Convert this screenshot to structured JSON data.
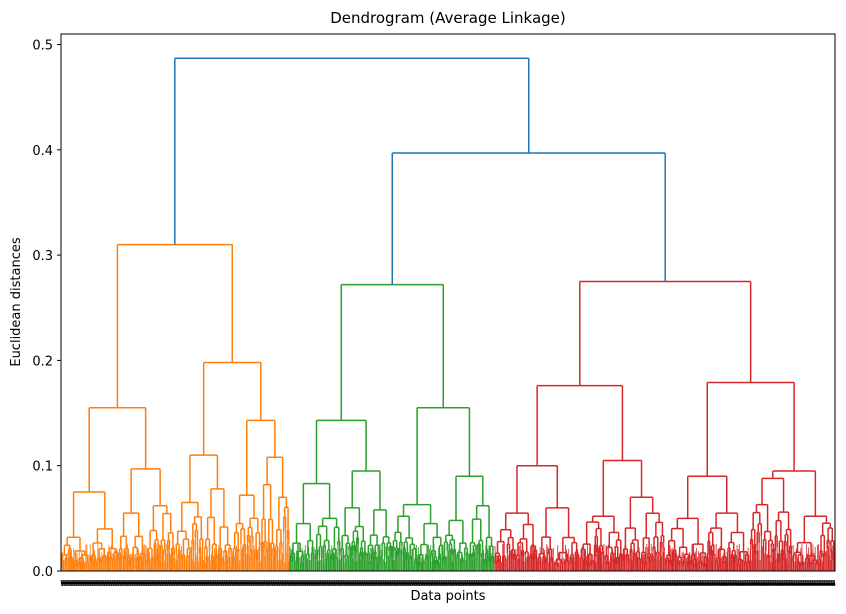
{
  "chart_data": {
    "type": "dendrogram",
    "title": "Dendrogram (Average Linkage)",
    "xlabel": "Data points",
    "ylabel": "Euclidean distances",
    "ylim": [
      0,
      0.51
    ],
    "yticks": [
      "0.0",
      "0.1",
      "0.2",
      "0.3",
      "0.4",
      "0.5"
    ],
    "link_colors": {
      "above_threshold": "#1f77b4",
      "cluster_1": "#ff7f0e",
      "cluster_2": "#2ca02c",
      "cluster_3": "#d62728"
    },
    "clusters": [
      {
        "name": "cluster_1",
        "color": "#ff7f0e",
        "extent": [
          0.0,
          0.295
        ],
        "tree": {
          "h": 0.31,
          "c": [
            {
              "h": 0.155,
              "c": [
                {
                  "h": 0.075,
                  "c": [
                    {
                      "h": 0.032
                    },
                    {
                      "h": 0.04
                    }
                  ]
                },
                {
                  "h": 0.097,
                  "c": [
                    {
                      "h": 0.055
                    },
                    {
                      "h": 0.062
                    }
                  ]
                }
              ]
            },
            {
              "h": 0.198,
              "c": [
                {
                  "h": 0.11,
                  "c": [
                    {
                      "h": 0.065
                    },
                    {
                      "h": 0.078
                    }
                  ]
                },
                {
                  "h": 0.143,
                  "c": [
                    {
                      "h": 0.072,
                      "c": [
                        {
                          "h": 0.045
                        },
                        {
                          "h": 0.05
                        }
                      ]
                    },
                    {
                      "h": 0.108,
                      "c": [
                        {
                          "h": 0.082
                        },
                        {
                          "h": 0.07
                        }
                      ]
                    }
                  ]
                }
              ]
            }
          ]
        }
      },
      {
        "name": "cluster_2",
        "color": "#2ca02c",
        "extent": [
          0.295,
          0.56
        ],
        "tree": {
          "h": 0.272,
          "c": [
            {
              "h": 0.143,
              "c": [
                {
                  "h": 0.083,
                  "c": [
                    {
                      "h": 0.045
                    },
                    {
                      "h": 0.05
                    }
                  ]
                },
                {
                  "h": 0.095,
                  "c": [
                    {
                      "h": 0.06
                    },
                    {
                      "h": 0.058
                    }
                  ]
                }
              ]
            },
            {
              "h": 0.155,
              "c": [
                {
                  "h": 0.063,
                  "c": [
                    {
                      "h": 0.052
                    },
                    {
                      "h": 0.045
                    }
                  ]
                },
                {
                  "h": 0.09,
                  "c": [
                    {
                      "h": 0.048
                    },
                    {
                      "h": 0.062
                    }
                  ]
                }
              ]
            }
          ]
        }
      },
      {
        "name": "cluster_3",
        "color": "#d62728",
        "extent": [
          0.56,
          1.0
        ],
        "tree": {
          "h": 0.275,
          "c": [
            {
              "h": 0.176,
              "c": [
                {
                  "h": 0.1,
                  "c": [
                    {
                      "h": 0.055
                    },
                    {
                      "h": 0.06
                    }
                  ]
                },
                {
                  "h": 0.105,
                  "c": [
                    {
                      "h": 0.052
                    },
                    {
                      "h": 0.07
                    }
                  ]
                }
              ]
            },
            {
              "h": 0.179,
              "c": [
                {
                  "h": 0.09,
                  "c": [
                    {
                      "h": 0.05
                    },
                    {
                      "h": 0.055
                    }
                  ]
                },
                {
                  "h": 0.095,
                  "c": [
                    {
                      "h": 0.088
                    },
                    {
                      "h": 0.052
                    }
                  ]
                }
              ]
            }
          ]
        }
      }
    ],
    "top_links": [
      {
        "h": 0.397,
        "joins": [
          "cluster_2",
          "cluster_3"
        ]
      },
      {
        "h": 0.487,
        "joins": [
          "cluster_1",
          "cluster_2+cluster_3"
        ]
      }
    ]
  }
}
